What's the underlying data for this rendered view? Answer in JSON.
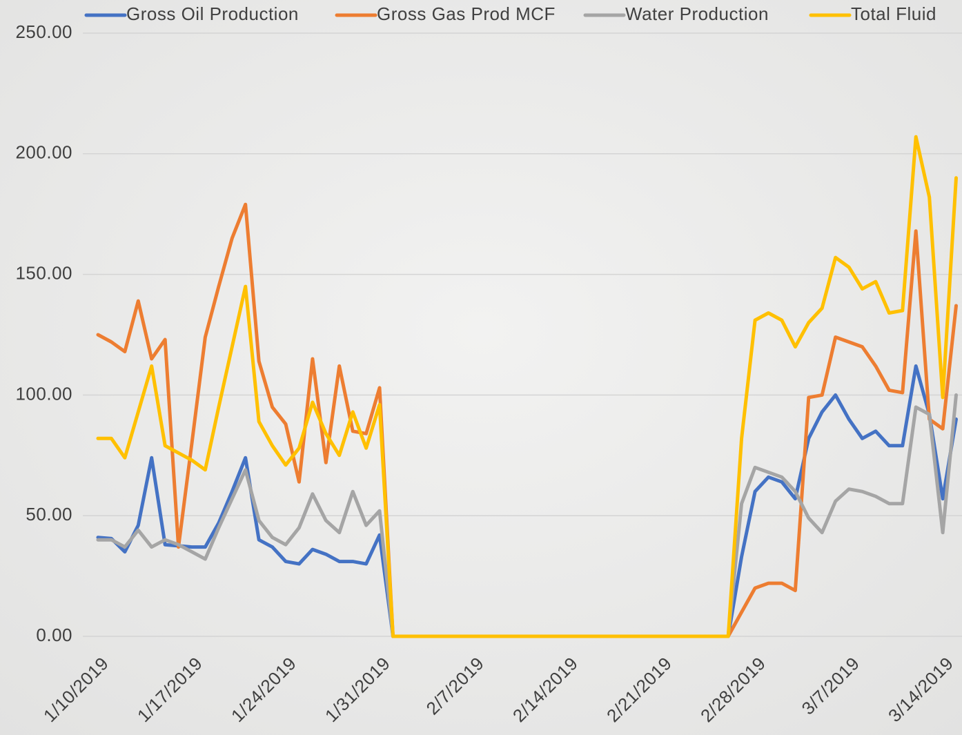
{
  "chart_data": {
    "type": "line",
    "categories": [
      "1/10/2019",
      null,
      null,
      null,
      null,
      null,
      null,
      "1/17/2019",
      null,
      null,
      null,
      null,
      null,
      null,
      "1/24/2019",
      null,
      null,
      null,
      null,
      null,
      null,
      "1/31/2019",
      null,
      null,
      null,
      null,
      null,
      null,
      "2/7/2019",
      null,
      null,
      null,
      null,
      null,
      null,
      "2/14/2019",
      null,
      null,
      null,
      null,
      null,
      null,
      "2/21/2019",
      null,
      null,
      null,
      null,
      null,
      null,
      "2/28/2019",
      null,
      null,
      null,
      null,
      null,
      null,
      "3/7/2019",
      null,
      null,
      null,
      null,
      null,
      null,
      "3/14/2019",
      null
    ],
    "series": [
      {
        "name": "Gross Oil Production",
        "color": "#4472c4",
        "values": [
          41,
          40.5,
          35,
          46,
          74,
          38,
          37.5,
          37,
          37,
          47,
          60,
          74,
          40,
          37,
          31,
          30,
          36,
          34,
          31,
          31,
          30,
          42,
          0,
          0,
          0,
          0,
          0,
          0,
          0,
          0,
          0,
          0,
          0,
          0,
          0,
          0,
          0,
          0,
          0,
          0,
          0,
          0,
          0,
          0,
          0,
          0,
          0,
          0,
          33,
          60,
          66,
          64,
          57,
          82,
          93,
          100,
          90,
          82,
          85,
          79,
          79,
          112,
          92,
          57,
          90
        ]
      },
      {
        "name": "Gross Gas Prod MCF",
        "color": "#ed7d31",
        "values": [
          125,
          122,
          118,
          139,
          115,
          123,
          37,
          80,
          124,
          145,
          165,
          179,
          114,
          95,
          88,
          64,
          115,
          72,
          112,
          85,
          84,
          103,
          0,
          0,
          0,
          0,
          0,
          0,
          0,
          0,
          0,
          0,
          0,
          0,
          0,
          0,
          0,
          0,
          0,
          0,
          0,
          0,
          0,
          0,
          0,
          0,
          0,
          0,
          10,
          20,
          22,
          22,
          19,
          99,
          100,
          124,
          122,
          120,
          112,
          102,
          101,
          168,
          90,
          86,
          137
        ]
      },
      {
        "name": "Water Production",
        "color": "#a5a5a5",
        "values": [
          40,
          40,
          37,
          44,
          37,
          40,
          38,
          35,
          32,
          45,
          57,
          69,
          48,
          41,
          38,
          45,
          59,
          48,
          43,
          60,
          46,
          52,
          0,
          0,
          0,
          0,
          0,
          0,
          0,
          0,
          0,
          0,
          0,
          0,
          0,
          0,
          0,
          0,
          0,
          0,
          0,
          0,
          0,
          0,
          0,
          0,
          0,
          0,
          55,
          70,
          68,
          66,
          60,
          49,
          43,
          56,
          61,
          60,
          58,
          55,
          55,
          95,
          92,
          43,
          100
        ]
      },
      {
        "name": "Total Fluid",
        "color": "#ffc000",
        "values": [
          82,
          82,
          74,
          93,
          112,
          79,
          76,
          73,
          69,
          95,
          120,
          145,
          89,
          79,
          71,
          78,
          97,
          84,
          75,
          93,
          78,
          96,
          0,
          0,
          0,
          0,
          0,
          0,
          0,
          0,
          0,
          0,
          0,
          0,
          0,
          0,
          0,
          0,
          0,
          0,
          0,
          0,
          0,
          0,
          0,
          0,
          0,
          0,
          82,
          131,
          134,
          131,
          120,
          130,
          136,
          157,
          153,
          144,
          147,
          134,
          135,
          207,
          182,
          99,
          190
        ]
      }
    ],
    "ylim": [
      0,
      250
    ],
    "yticks": [
      {
        "value": 0,
        "label": "0.00"
      },
      {
        "value": 50,
        "label": "50.00"
      },
      {
        "value": 100,
        "label": "100.00"
      },
      {
        "value": 150,
        "label": "150.00"
      },
      {
        "value": 200,
        "label": "200.00"
      },
      {
        "value": 250,
        "label": "250.00"
      }
    ],
    "grid": true,
    "legend": "top"
  }
}
